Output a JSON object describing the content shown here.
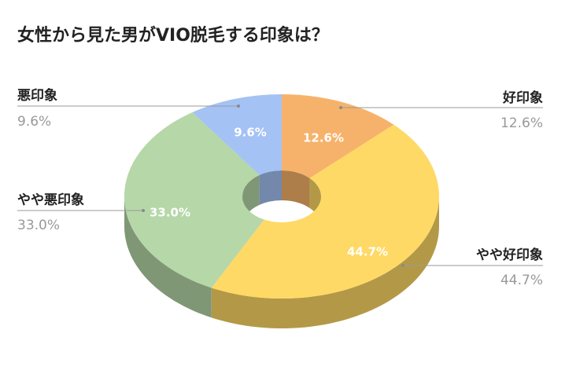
{
  "chart_data": {
    "type": "pie",
    "title": "女性から見た男がVIO脱毛する印象は？",
    "categories": [
      "好印象",
      "やや好印象",
      "やや悪印象",
      "悪印象"
    ],
    "values": [
      12.6,
      44.7,
      33.0,
      9.6
    ],
    "value_labels": [
      "12.6%",
      "44.7%",
      "33.0%",
      "9.6%"
    ],
    "colors": {
      "top": [
        "#f6b26b",
        "#ffd966",
        "#b6d7a8",
        "#a4c2f4"
      ],
      "side": [
        "#ad7d4a",
        "#b39947",
        "#809776",
        "#7388ab"
      ]
    },
    "style": "3d-doughnut",
    "start": "12 o'clock, clockwise",
    "legend": "none"
  }
}
